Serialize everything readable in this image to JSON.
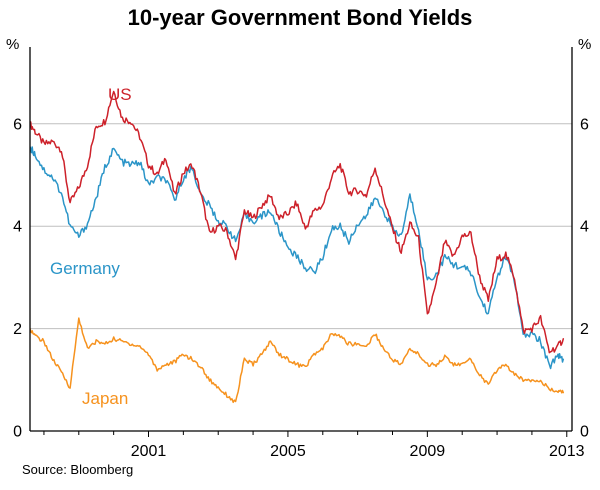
{
  "title": "10-year Government Bond Yields",
  "source": "Source: Bloomberg",
  "axis_unit_left": "%",
  "axis_unit_right": "%",
  "chart_data": {
    "type": "line",
    "title": "10-year Government Bond Yields",
    "xlabel": "",
    "ylabel": "%",
    "ylim": [
      0,
      7.5
    ],
    "yticks": [
      0,
      2,
      4,
      6
    ],
    "xlim": [
      1997.6,
      2013.15
    ],
    "xticks": [
      2001,
      2005,
      2009,
      2013
    ],
    "grid": "horizontal",
    "legend_position": "inline-labels",
    "source": "Bloomberg",
    "x": [
      1997.6,
      1997.75,
      1998,
      1998.25,
      1998.5,
      1998.75,
      1999,
      1999.25,
      1999.5,
      1999.75,
      2000,
      2000.25,
      2000.5,
      2000.75,
      2001,
      2001.25,
      2001.5,
      2001.75,
      2002,
      2002.25,
      2002.5,
      2002.75,
      2003,
      2003.25,
      2003.5,
      2003.75,
      2004,
      2004.25,
      2004.5,
      2004.75,
      2005,
      2005.25,
      2005.5,
      2005.75,
      2006,
      2006.25,
      2006.5,
      2006.75,
      2007,
      2007.25,
      2007.5,
      2007.75,
      2008,
      2008.25,
      2008.5,
      2008.75,
      2009,
      2009.25,
      2009.5,
      2009.75,
      2010,
      2010.25,
      2010.5,
      2010.75,
      2011,
      2011.25,
      2011.5,
      2011.75,
      2012,
      2012.25,
      2012.5,
      2012.75,
      2012.9
    ],
    "series": [
      {
        "name": "US",
        "color": "#cd212a",
        "values": [
          6.0,
          5.85,
          5.6,
          5.65,
          5.5,
          4.45,
          4.75,
          5.2,
          5.95,
          6.05,
          6.65,
          6.1,
          6.05,
          5.75,
          5.2,
          5.0,
          5.35,
          4.6,
          5.05,
          5.2,
          4.65,
          3.85,
          4.0,
          3.9,
          3.35,
          4.3,
          4.15,
          4.4,
          4.6,
          4.15,
          4.25,
          4.45,
          3.95,
          4.3,
          4.4,
          4.95,
          5.2,
          4.65,
          4.7,
          4.6,
          5.15,
          4.55,
          3.95,
          3.5,
          4.05,
          3.75,
          2.25,
          2.85,
          3.7,
          3.4,
          3.8,
          3.85,
          3.0,
          2.55,
          3.35,
          3.45,
          3.0,
          1.95,
          2.0,
          2.2,
          1.55,
          1.65,
          1.8
        ]
      },
      {
        "name": "Germany",
        "color": "#2b95c8",
        "values": [
          5.55,
          5.4,
          5.1,
          4.95,
          4.65,
          4.0,
          3.8,
          4.05,
          4.55,
          5.15,
          5.5,
          5.25,
          5.2,
          5.25,
          4.8,
          4.95,
          4.9,
          4.5,
          4.95,
          5.15,
          4.6,
          4.4,
          4.1,
          4.0,
          3.7,
          4.2,
          4.1,
          4.2,
          4.3,
          3.9,
          3.6,
          3.4,
          3.2,
          3.1,
          3.4,
          3.95,
          4.0,
          3.7,
          4.05,
          4.2,
          4.55,
          4.3,
          3.95,
          3.8,
          4.6,
          3.95,
          2.95,
          3.05,
          3.4,
          3.25,
          3.2,
          3.1,
          2.6,
          2.3,
          3.0,
          3.4,
          2.95,
          1.85,
          1.9,
          1.75,
          1.25,
          1.5,
          1.4
        ]
      },
      {
        "name": "Japan",
        "color": "#f6921e",
        "values": [
          2.0,
          1.85,
          1.75,
          1.4,
          1.15,
          0.85,
          2.2,
          1.6,
          1.75,
          1.7,
          1.8,
          1.75,
          1.7,
          1.65,
          1.5,
          1.2,
          1.3,
          1.35,
          1.5,
          1.4,
          1.25,
          1.0,
          0.85,
          0.7,
          0.55,
          1.4,
          1.3,
          1.5,
          1.75,
          1.5,
          1.4,
          1.3,
          1.25,
          1.5,
          1.6,
          1.9,
          1.85,
          1.7,
          1.7,
          1.65,
          1.9,
          1.6,
          1.4,
          1.3,
          1.6,
          1.5,
          1.3,
          1.3,
          1.45,
          1.3,
          1.3,
          1.4,
          1.1,
          0.9,
          1.2,
          1.3,
          1.1,
          1.0,
          1.0,
          1.0,
          0.8,
          0.78,
          0.75
        ]
      }
    ]
  }
}
